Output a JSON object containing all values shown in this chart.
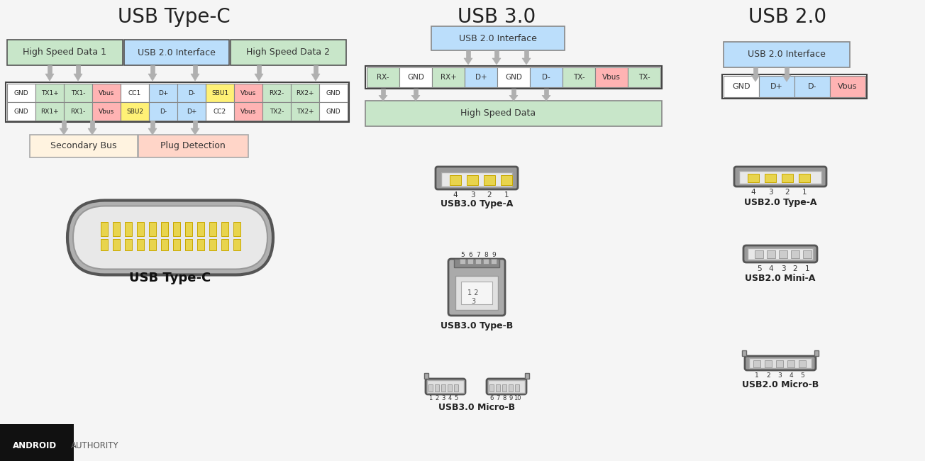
{
  "bg_color": "#f5f5f5",
  "colors": {
    "green_bg": "#c8e6c9",
    "blue_bg": "#bbdefb",
    "red_bg": "#ffb3b3",
    "yellow_bg": "#fff176",
    "white_bg": "#ffffff",
    "peach_bg": "#fff3e0",
    "salmon_bg": "#ffd5c8",
    "connector_body": "#999999",
    "connector_light": "#cccccc",
    "connector_dark": "#777777",
    "pin_yellow": "#e8d44d",
    "pin_dark": "#c8a800",
    "border_dark": "#555555",
    "arrow_color": "#aaaaaa",
    "text_dark": "#333333",
    "text_black": "#111111"
  },
  "typec_row1": [
    [
      "GND",
      "white"
    ],
    [
      "TX1+",
      "green"
    ],
    [
      "TX1-",
      "green"
    ],
    [
      "Vbus",
      "red"
    ],
    [
      "CC1",
      "white"
    ],
    [
      "D+",
      "blue"
    ],
    [
      "D-",
      "blue"
    ],
    [
      "SBU1",
      "yellow"
    ],
    [
      "Vbus",
      "red"
    ],
    [
      "RX2-",
      "green"
    ],
    [
      "RX2+",
      "green"
    ],
    [
      "GND",
      "white"
    ]
  ],
  "typec_row2": [
    [
      "GND",
      "white"
    ],
    [
      "RX1+",
      "green"
    ],
    [
      "RX1-",
      "green"
    ],
    [
      "Vbus",
      "red"
    ],
    [
      "SBU2",
      "yellow"
    ],
    [
      "D-",
      "blue"
    ],
    [
      "D+",
      "blue"
    ],
    [
      "CC2",
      "white"
    ],
    [
      "Vbus",
      "red"
    ],
    [
      "TX2-",
      "green"
    ],
    [
      "TX2+",
      "green"
    ],
    [
      "GND",
      "white"
    ]
  ],
  "usb30_pins": [
    [
      "RX-",
      "green"
    ],
    [
      "GND",
      "white"
    ],
    [
      "RX+",
      "green"
    ],
    [
      "D+",
      "blue"
    ],
    [
      "GND",
      "white"
    ],
    [
      "D-",
      "blue"
    ],
    [
      "TX-",
      "green"
    ],
    [
      "Vbus",
      "red"
    ],
    [
      "TX-",
      "green"
    ]
  ],
  "usb20_pins": [
    [
      "GND",
      "white"
    ],
    [
      "D+",
      "blue"
    ],
    [
      "D-",
      "blue"
    ],
    [
      "Vbus",
      "red"
    ]
  ]
}
